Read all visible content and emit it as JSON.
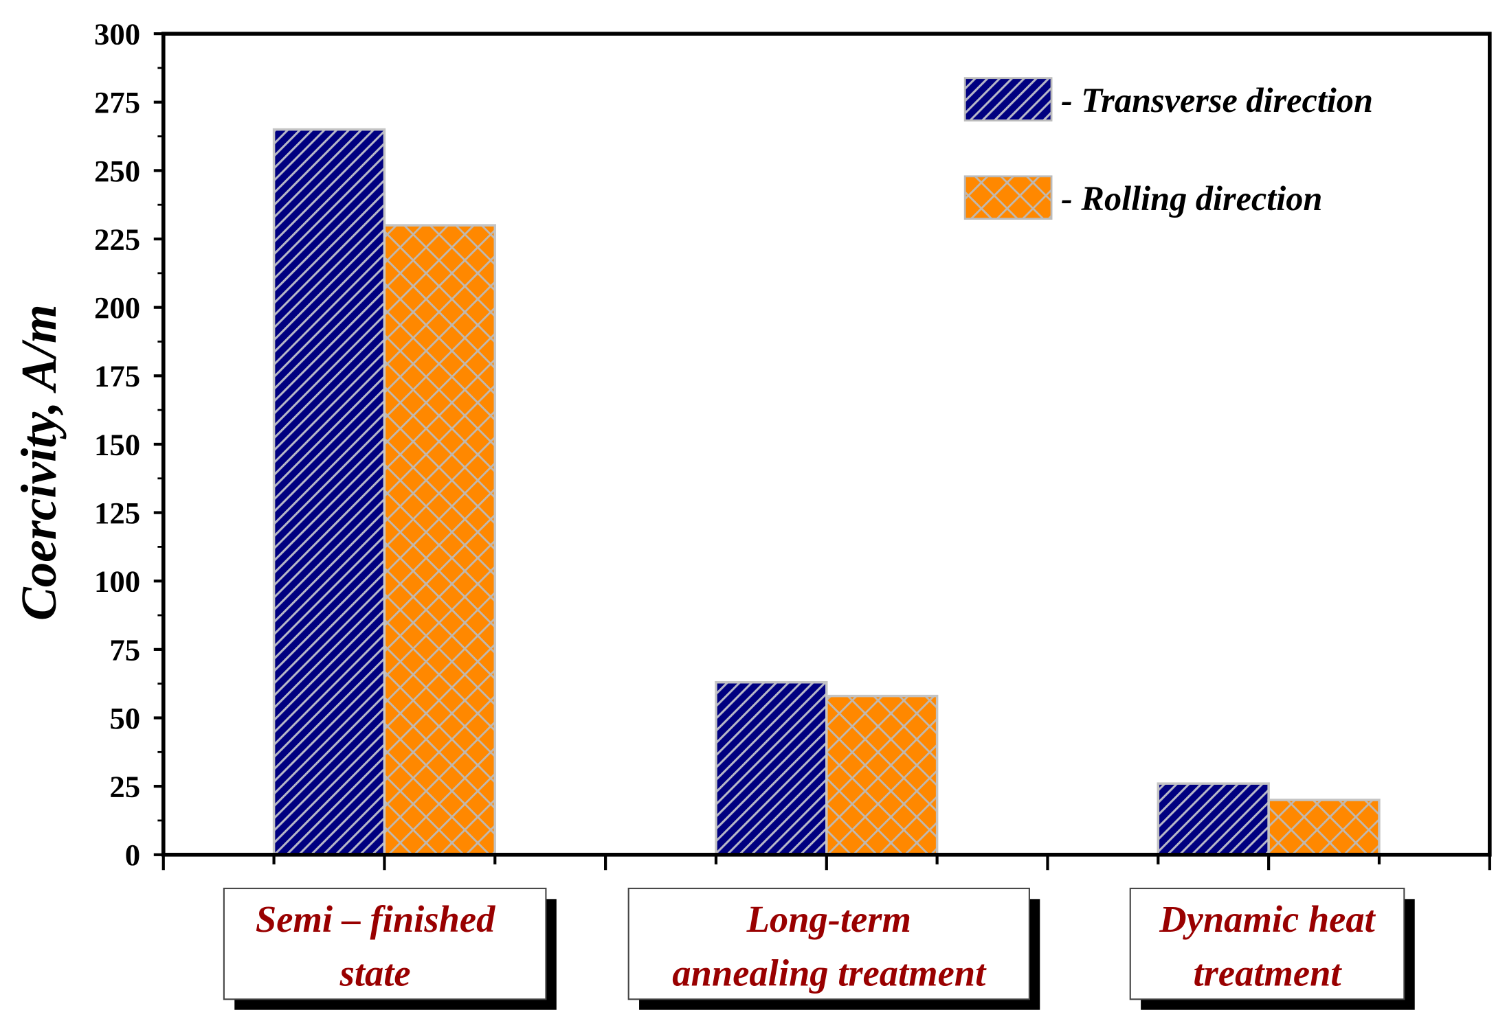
{
  "chart_data": {
    "type": "bar",
    "categories": [
      [
        "Semi – finished",
        "state"
      ],
      [
        "Long-term",
        "annealing treatment"
      ],
      [
        "Dynamic heat",
        "treatment"
      ]
    ],
    "series": [
      {
        "name": "- Transverse direction",
        "values": [
          265,
          63,
          26
        ],
        "color": "#000080",
        "pattern": "diagonal-hatch"
      },
      {
        "name": "- Rolling direction",
        "values": [
          230,
          58,
          20
        ],
        "color": "#FF8800",
        "pattern": "cross-hatch"
      }
    ],
    "ylabel": "Coercivity, A/m",
    "xlabel": "",
    "ylim": [
      0,
      300
    ],
    "yticks": [
      0,
      25,
      50,
      75,
      100,
      125,
      150,
      175,
      200,
      225,
      250,
      275,
      300
    ],
    "grid": false,
    "legend_position": "top-right",
    "category_label_color": "#990000"
  }
}
